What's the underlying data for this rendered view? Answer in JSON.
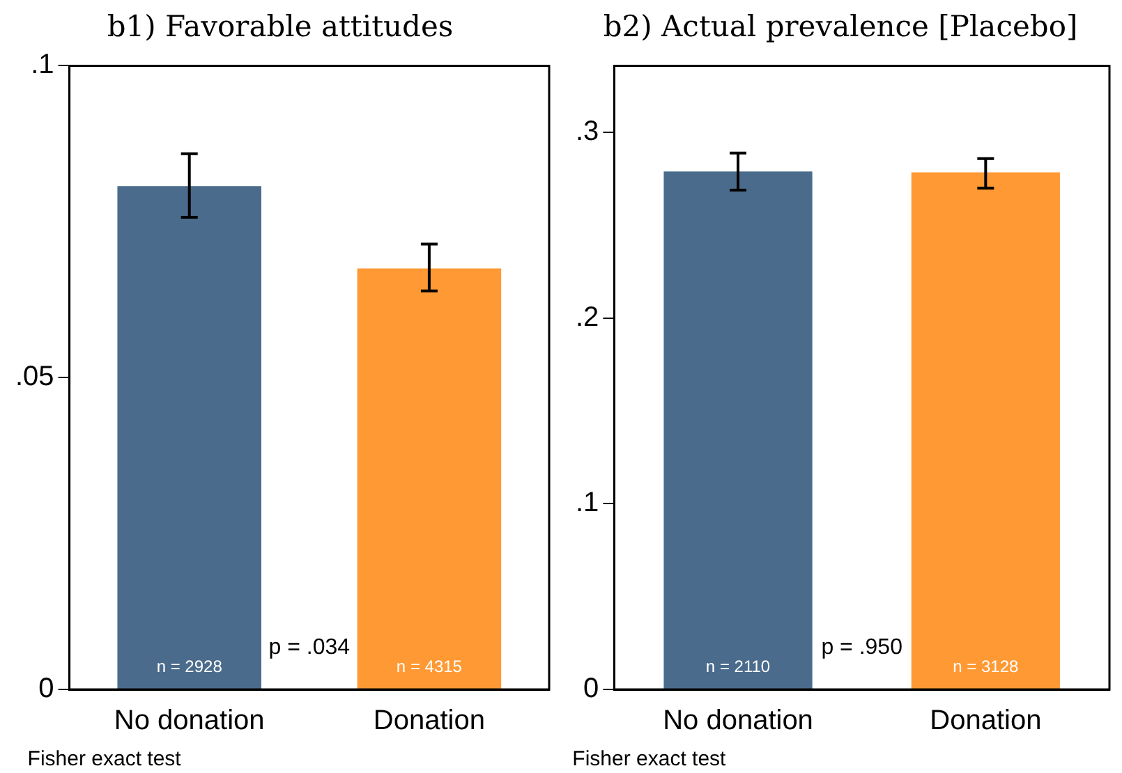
{
  "chart_data": [
    {
      "type": "bar",
      "title": "b1) Favorable attitudes",
      "categories": [
        "No donation",
        "Donation"
      ],
      "values": [
        0.0807,
        0.0675
      ],
      "colors": [
        "#4a6b8c",
        "#ff9933"
      ],
      "errors": [
        [
          0.0757,
          0.0859
        ],
        [
          0.0639,
          0.0714
        ]
      ],
      "ylim": [
        0,
        0.1
      ],
      "yticks": [
        {
          "value": 0,
          "label": "0"
        },
        {
          "value": 0.05,
          "label": ".05"
        },
        {
          "value": 0.1,
          "label": ".1"
        }
      ],
      "grid": false,
      "legend": false,
      "annotations": [
        {
          "text": "n = 2928",
          "x": "No donation",
          "y": 0
        },
        {
          "text": "n = 4315",
          "x": "Donation",
          "y": 0
        },
        "p = .034",
        "Fisher exact test"
      ]
    },
    {
      "type": "bar",
      "title": "b2) Actual prevalence [Placebo]",
      "categories": [
        "No donation",
        "Donation"
      ],
      "values": [
        0.279,
        0.2786
      ],
      "colors": [
        "#4a6b8c",
        "#ff9933"
      ],
      "errors": [
        [
          0.269,
          0.289
        ],
        [
          0.27,
          0.286
        ]
      ],
      "ylim": [
        0,
        0.336
      ],
      "yticks": [
        {
          "value": 0,
          "label": "0"
        },
        {
          "value": 0.1,
          "label": ".1"
        },
        {
          "value": 0.2,
          "label": ".2"
        },
        {
          "value": 0.3,
          "label": ".3"
        }
      ],
      "grid": false,
      "legend": false,
      "annotations": [
        {
          "text": "n = 2110",
          "x": "No donation",
          "y": 0
        },
        {
          "text": "n = 3128",
          "x": "Donation",
          "y": 0
        },
        "p = .950",
        "Fisher exact test"
      ]
    }
  ]
}
